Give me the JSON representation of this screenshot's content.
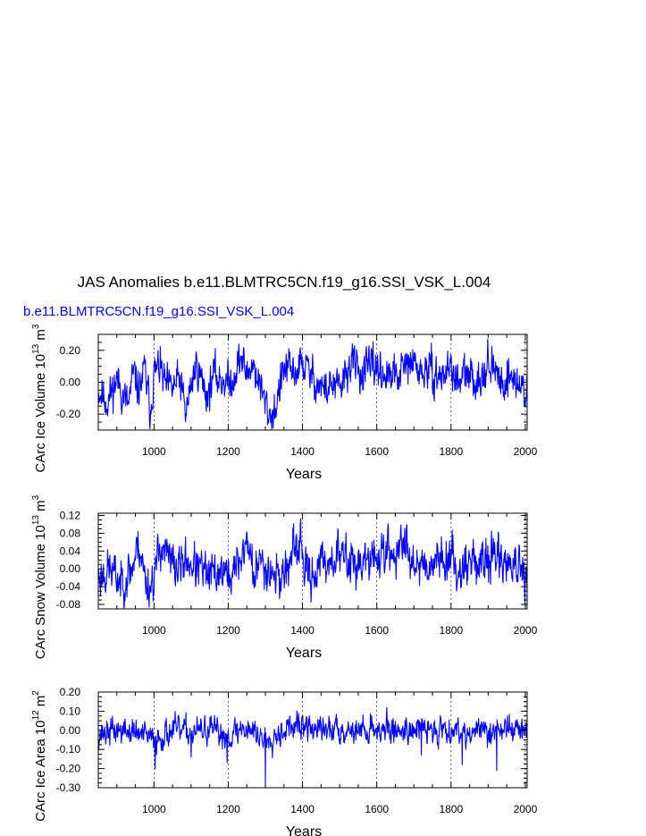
{
  "title": "JAS Anomalies b.e11.BLMTRC5CN.f19_g16.SSI_VSK_L.004",
  "subtitle": "b.e11.BLMTRC5CN.f19_g16.SSI_VSK_L.004",
  "colors": {
    "series": "#0000ff",
    "axis": "#000000",
    "grid": "#000000"
  },
  "chart_data": [
    {
      "type": "line",
      "ylabel": {
        "text": "CArc Ice Volume 10",
        "exp": "13",
        "unit": " m",
        "unit_exp": "3"
      },
      "xlabel": "Years",
      "xlim": [
        850,
        2005
      ],
      "ylim": [
        -0.3,
        0.3
      ],
      "xticks": [
        1000,
        1200,
        1400,
        1600,
        1800,
        2000
      ],
      "yticks": [
        0.2,
        0.0,
        -0.2
      ],
      "ytick_labels": [
        "0.20",
        "0.00",
        "-0.20"
      ],
      "grid": "dashed vertical at major x ticks",
      "series": [
        {
          "x_start": 850,
          "x_end": 2005,
          "y_anchors": [
            [
              850,
              -0.05
            ],
            [
              875,
              -0.12
            ],
            [
              900,
              0.02
            ],
            [
              930,
              -0.15
            ],
            [
              945,
              0.05
            ],
            [
              960,
              -0.05
            ],
            [
              975,
              0.08
            ],
            [
              990,
              -0.18
            ],
            [
              1000,
              0.05
            ],
            [
              1015,
              0.1
            ],
            [
              1030,
              -0.02
            ],
            [
              1045,
              -0.05
            ],
            [
              1070,
              0.02
            ],
            [
              1085,
              -0.2
            ],
            [
              1100,
              -0.02
            ],
            [
              1115,
              0.12
            ],
            [
              1130,
              0.0
            ],
            [
              1145,
              -0.08
            ],
            [
              1160,
              0.05
            ],
            [
              1175,
              0.02
            ],
            [
              1190,
              0.02
            ],
            [
              1205,
              -0.02
            ],
            [
              1220,
              0.08
            ],
            [
              1235,
              0.15
            ],
            [
              1250,
              0.05
            ],
            [
              1265,
              0.12
            ],
            [
              1280,
              0.02
            ],
            [
              1295,
              -0.1
            ],
            [
              1310,
              -0.2
            ],
            [
              1325,
              -0.18
            ],
            [
              1340,
              -0.02
            ],
            [
              1355,
              0.1
            ],
            [
              1370,
              0.05
            ],
            [
              1385,
              0.08
            ],
            [
              1400,
              0.12
            ],
            [
              1420,
              0.05
            ],
            [
              1440,
              0.0
            ],
            [
              1460,
              -0.05
            ],
            [
              1480,
              -0.02
            ],
            [
              1500,
              -0.05
            ],
            [
              1520,
              0.08
            ],
            [
              1540,
              0.12
            ],
            [
              1560,
              0.05
            ],
            [
              1580,
              0.08
            ],
            [
              1600,
              0.1
            ],
            [
              1620,
              0.05
            ],
            [
              1640,
              0.02
            ],
            [
              1660,
              0.05
            ],
            [
              1680,
              0.1
            ],
            [
              1700,
              0.12
            ],
            [
              1720,
              0.05
            ],
            [
              1740,
              0.08
            ],
            [
              1760,
              0.03
            ],
            [
              1780,
              0.05
            ],
            [
              1800,
              0.1
            ],
            [
              1820,
              -0.02
            ],
            [
              1840,
              0.05
            ],
            [
              1860,
              0.0
            ],
            [
              1880,
              0.05
            ],
            [
              1900,
              0.12
            ],
            [
              1920,
              0.05
            ],
            [
              1940,
              0.0
            ],
            [
              1960,
              0.05
            ],
            [
              1980,
              -0.02
            ],
            [
              2005,
              -0.05
            ]
          ],
          "noise": 0.055,
          "seed": 11
        }
      ]
    },
    {
      "type": "line",
      "ylabel": {
        "text": "CArc Snow Volume 10",
        "exp": "13",
        "unit": " m",
        "unit_exp": "3"
      },
      "xlabel": "Years",
      "xlim": [
        850,
        2005
      ],
      "ylim": [
        -0.09,
        0.125
      ],
      "xticks": [
        1000,
        1200,
        1400,
        1600,
        1800,
        2000
      ],
      "yticks": [
        0.12,
        0.08,
        0.04,
        0.0,
        -0.04,
        -0.08
      ],
      "ytick_labels": [
        "0.12",
        "0.08",
        "0.04",
        "0.00",
        "-0.04",
        "-0.08"
      ],
      "grid": "dashed vertical at major x ticks",
      "series": [
        {
          "x_start": 850,
          "x_end": 2005,
          "y_anchors": [
            [
              850,
              -0.02
            ],
            [
              880,
              0.0
            ],
            [
              910,
              -0.03
            ],
            [
              940,
              0.0
            ],
            [
              960,
              0.06
            ],
            [
              975,
              -0.02
            ],
            [
              990,
              -0.04
            ],
            [
              1010,
              0.02
            ],
            [
              1020,
              0.06
            ],
            [
              1040,
              0.02
            ],
            [
              1060,
              0.0
            ],
            [
              1090,
              0.02
            ],
            [
              1120,
              0.0
            ],
            [
              1150,
              -0.02
            ],
            [
              1180,
              0.0
            ],
            [
              1200,
              -0.02
            ],
            [
              1220,
              0.0
            ],
            [
              1240,
              0.04
            ],
            [
              1255,
              0.06
            ],
            [
              1270,
              -0.02
            ],
            [
              1290,
              0.02
            ],
            [
              1310,
              0.0
            ],
            [
              1340,
              -0.02
            ],
            [
              1370,
              0.02
            ],
            [
              1395,
              0.06
            ],
            [
              1410,
              -0.02
            ],
            [
              1440,
              0.0
            ],
            [
              1470,
              0.02
            ],
            [
              1500,
              0.03
            ],
            [
              1530,
              0.02
            ],
            [
              1560,
              0.01
            ],
            [
              1590,
              0.02
            ],
            [
              1620,
              0.04
            ],
            [
              1650,
              0.03
            ],
            [
              1680,
              0.06
            ],
            [
              1700,
              0.02
            ],
            [
              1730,
              0.01
            ],
            [
              1760,
              0.02
            ],
            [
              1790,
              0.03
            ],
            [
              1820,
              0.0
            ],
            [
              1850,
              0.02
            ],
            [
              1880,
              0.01
            ],
            [
              1910,
              0.03
            ],
            [
              1940,
              0.02
            ],
            [
              1970,
              0.01
            ],
            [
              2005,
              -0.04
            ]
          ],
          "noise": 0.022,
          "seed": 23
        }
      ]
    },
    {
      "type": "line",
      "ylabel": {
        "text": "CArc Ice Area 10",
        "exp": "12",
        "unit": " m",
        "unit_exp": "2"
      },
      "xlabel": "Years",
      "xlim": [
        850,
        2005
      ],
      "ylim": [
        -0.3,
        0.2
      ],
      "xticks": [
        1000,
        1200,
        1400,
        1600,
        1800,
        2000
      ],
      "yticks": [
        0.2,
        0.1,
        0.0,
        -0.1,
        -0.2,
        -0.3
      ],
      "ytick_labels": [
        "0.20",
        "0.10",
        "0.00",
        "-0.10",
        "-0.20",
        "-0.30"
      ],
      "grid": "dashed vertical at major x ticks",
      "series": [
        {
          "x_start": 850,
          "x_end": 2005,
          "y_anchors": [
            [
              850,
              -0.02
            ],
            [
              900,
              0.0
            ],
            [
              950,
              -0.01
            ],
            [
              1000,
              -0.05
            ],
            [
              1050,
              0.0
            ],
            [
              1100,
              -0.01
            ],
            [
              1150,
              0.0
            ],
            [
              1200,
              -0.03
            ],
            [
              1250,
              0.02
            ],
            [
              1300,
              -0.05
            ],
            [
              1350,
              0.01
            ],
            [
              1400,
              0.02
            ],
            [
              1450,
              0.0
            ],
            [
              1500,
              0.01
            ],
            [
              1550,
              0.0
            ],
            [
              1600,
              0.01
            ],
            [
              1650,
              0.0
            ],
            [
              1700,
              0.01
            ],
            [
              1750,
              0.0
            ],
            [
              1800,
              0.01
            ],
            [
              1850,
              -0.01
            ],
            [
              1900,
              0.0
            ],
            [
              1950,
              0.01
            ],
            [
              2005,
              0.0
            ]
          ],
          "noise": 0.032,
          "seed": 37,
          "spikes": [
            [
              1300,
              -0.29
            ],
            [
              1003,
              -0.2
            ],
            [
              1923,
              -0.21
            ],
            [
              1197,
              -0.17
            ],
            [
              1830,
              -0.18
            ],
            [
              1100,
              -0.14
            ],
            [
              1720,
              -0.13
            ]
          ]
        }
      ]
    }
  ]
}
